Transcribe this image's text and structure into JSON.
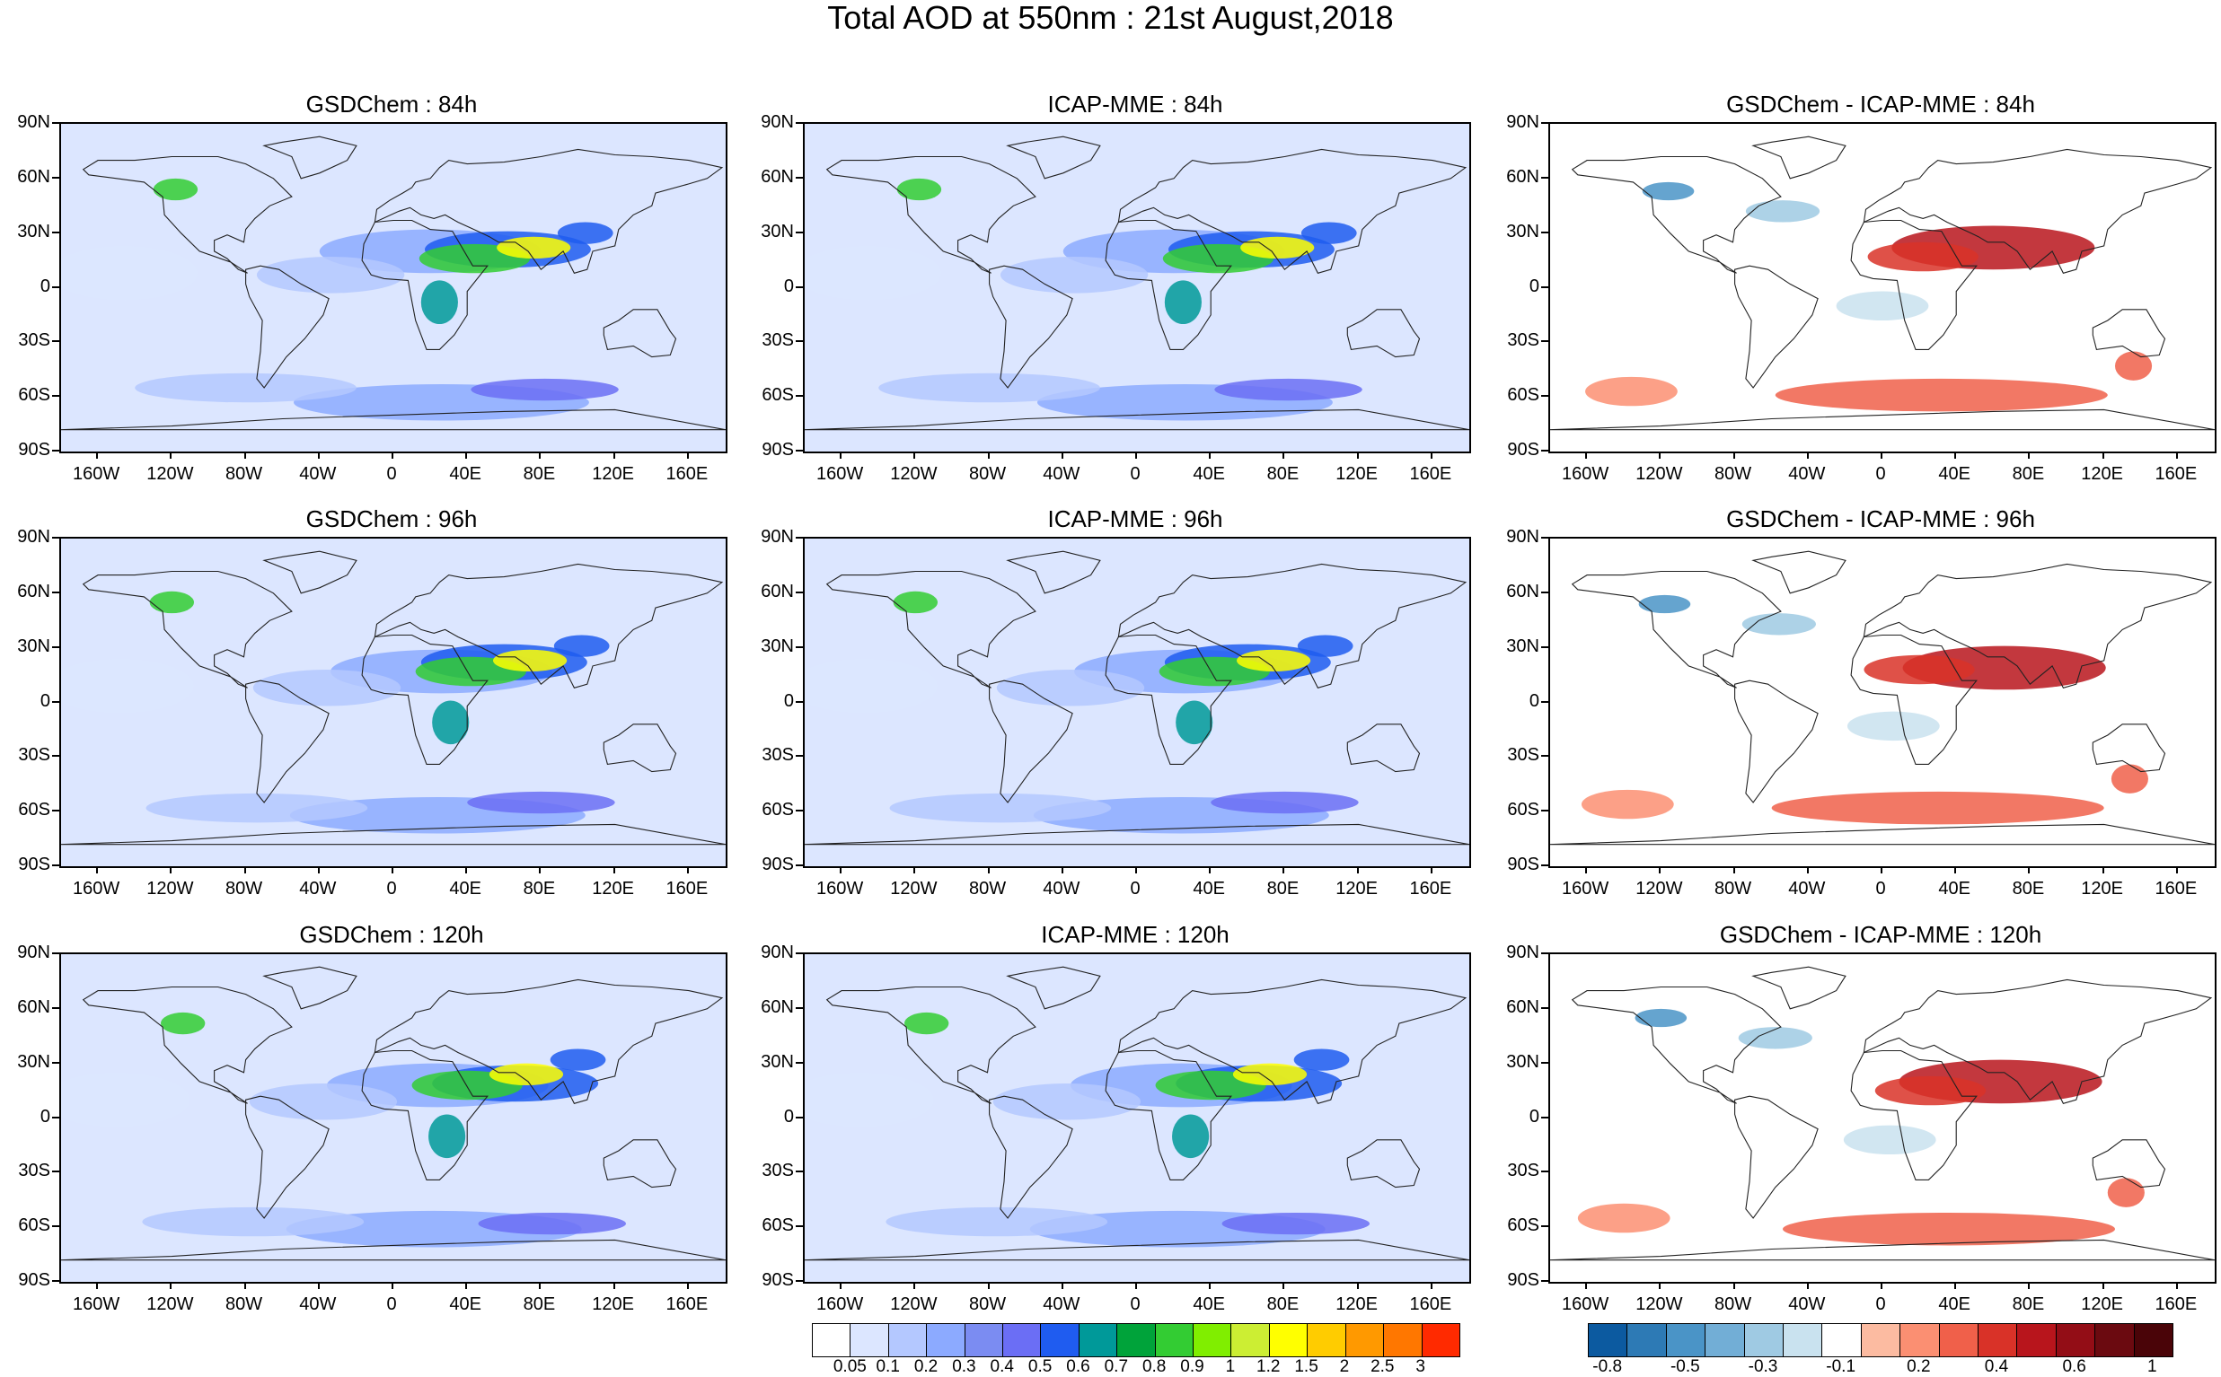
{
  "title": "Total AOD at 550nm : 21st August,2018",
  "panels": [
    {
      "title": "GSDChem : 84h",
      "kind": "aod"
    },
    {
      "title": "ICAP-MME : 84h",
      "kind": "aod"
    },
    {
      "title": "GSDChem - ICAP-MME : 84h",
      "kind": "diff"
    },
    {
      "title": "GSDChem : 96h",
      "kind": "aod"
    },
    {
      "title": "ICAP-MME : 96h",
      "kind": "aod"
    },
    {
      "title": "GSDChem - ICAP-MME : 96h",
      "kind": "diff"
    },
    {
      "title": "GSDChem : 120h",
      "kind": "aod"
    },
    {
      "title": "ICAP-MME : 120h",
      "kind": "aod"
    },
    {
      "title": "GSDChem - ICAP-MME : 120h",
      "kind": "diff"
    }
  ],
  "lat_labels": [
    "90N",
    "60N",
    "30N",
    "0",
    "30S",
    "60S",
    "90S"
  ],
  "lon_labels": [
    "160W",
    "120W",
    "80W",
    "40W",
    "0",
    "40E",
    "80E",
    "120E",
    "160E"
  ],
  "aod_colorbar": {
    "colors": [
      "#ffffff",
      "#dce6ff",
      "#b4c8ff",
      "#8caaff",
      "#7b8cf2",
      "#6b6ef5",
      "#1f5cf0",
      "#009999",
      "#00a33a",
      "#33cc33",
      "#80ee00",
      "#ccee33",
      "#ffff00",
      "#ffcc00",
      "#ff9900",
      "#ff7700",
      "#ff2a00"
    ],
    "labels": [
      "0.05",
      "0.1",
      "0.2",
      "0.3",
      "0.4",
      "0.5",
      "0.6",
      "0.7",
      "0.8",
      "0.9",
      "1",
      "1.2",
      "1.5",
      "2",
      "2.5",
      "3"
    ]
  },
  "diff_colorbar": {
    "colors": [
      "#0c5aa0",
      "#2d7ab5",
      "#4a94c7",
      "#72aed6",
      "#9fcae3",
      "#c9e2ef",
      "#ffffff",
      "#fcbba1",
      "#fb8f72",
      "#f0604a",
      "#d93228",
      "#b8151c",
      "#930d16",
      "#6b0a10",
      "#4a0408"
    ],
    "labels": [
      "-0.8",
      "-0.5",
      "-0.3",
      "-0.1",
      "0.2",
      "0.4",
      "0.6",
      "1"
    ]
  }
}
